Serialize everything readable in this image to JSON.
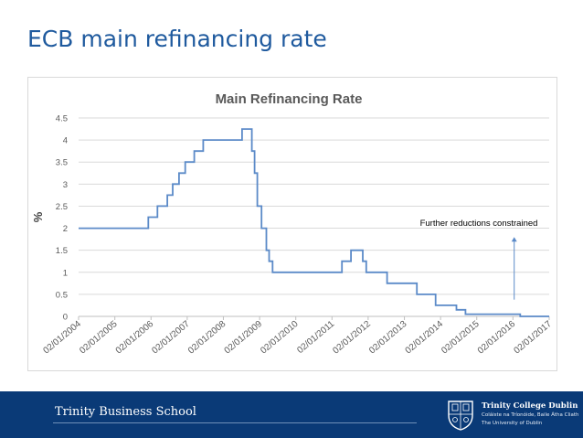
{
  "slide": {
    "title": "ECB main refinancing rate"
  },
  "footer": {
    "school": "Trinity Business School",
    "logo_line1": "Trinity College Dublin",
    "logo_line2": "Coláiste na Tríonóide, Baile Átha Cliath",
    "logo_line3": "The University of Dublin",
    "background_color": "#0a3a77"
  },
  "chart_data": {
    "type": "line",
    "title": "Main Refinancing Rate",
    "ylabel": "%",
    "xlabel": "",
    "ylim": [
      0,
      4.5
    ],
    "yticks": [
      "0",
      "0.5",
      "1",
      "1.5",
      "2",
      "2.5",
      "3",
      "3.5",
      "4",
      "4.5"
    ],
    "xlim": [
      "2004-01-02",
      "2017-01-02"
    ],
    "xticks": [
      "02/01/2004",
      "02/01/2005",
      "02/01/2006",
      "02/01/2007",
      "02/01/2008",
      "02/01/2009",
      "02/01/2010",
      "02/01/2011",
      "02/01/2012",
      "02/01/2013",
      "02/01/2014",
      "02/01/2015",
      "02/01/2016",
      "02/01/2017"
    ],
    "grid": true,
    "line_color": "#5b8ac8",
    "series": [
      {
        "step": true,
        "points": [
          [
            "2004-01-02",
            2.0
          ],
          [
            "2005-12-06",
            2.25
          ],
          [
            "2006-03-08",
            2.5
          ],
          [
            "2006-06-15",
            2.75
          ],
          [
            "2006-08-09",
            3.0
          ],
          [
            "2006-10-11",
            3.25
          ],
          [
            "2006-12-13",
            3.5
          ],
          [
            "2007-03-14",
            3.75
          ],
          [
            "2007-06-13",
            4.0
          ],
          [
            "2008-07-09",
            4.25
          ],
          [
            "2008-10-15",
            3.75
          ],
          [
            "2008-11-12",
            3.25
          ],
          [
            "2008-12-10",
            2.5
          ],
          [
            "2009-01-21",
            2.0
          ],
          [
            "2009-03-11",
            1.5
          ],
          [
            "2009-04-08",
            1.25
          ],
          [
            "2009-05-13",
            1.0
          ],
          [
            "2011-04-13",
            1.25
          ],
          [
            "2011-07-13",
            1.5
          ],
          [
            "2011-11-09",
            1.25
          ],
          [
            "2011-12-14",
            1.0
          ],
          [
            "2012-07-11",
            0.75
          ],
          [
            "2013-05-08",
            0.5
          ],
          [
            "2013-11-13",
            0.25
          ],
          [
            "2014-06-11",
            0.15
          ],
          [
            "2014-09-10",
            0.05
          ],
          [
            "2016-03-16",
            0.0
          ],
          [
            "2017-01-02",
            0.0
          ]
        ]
      }
    ],
    "annotation": {
      "text": "Further reductions constrained",
      "arrow_date": "2016-01-15",
      "arrow_from": 0.38,
      "arrow_to": 1.8
    }
  }
}
